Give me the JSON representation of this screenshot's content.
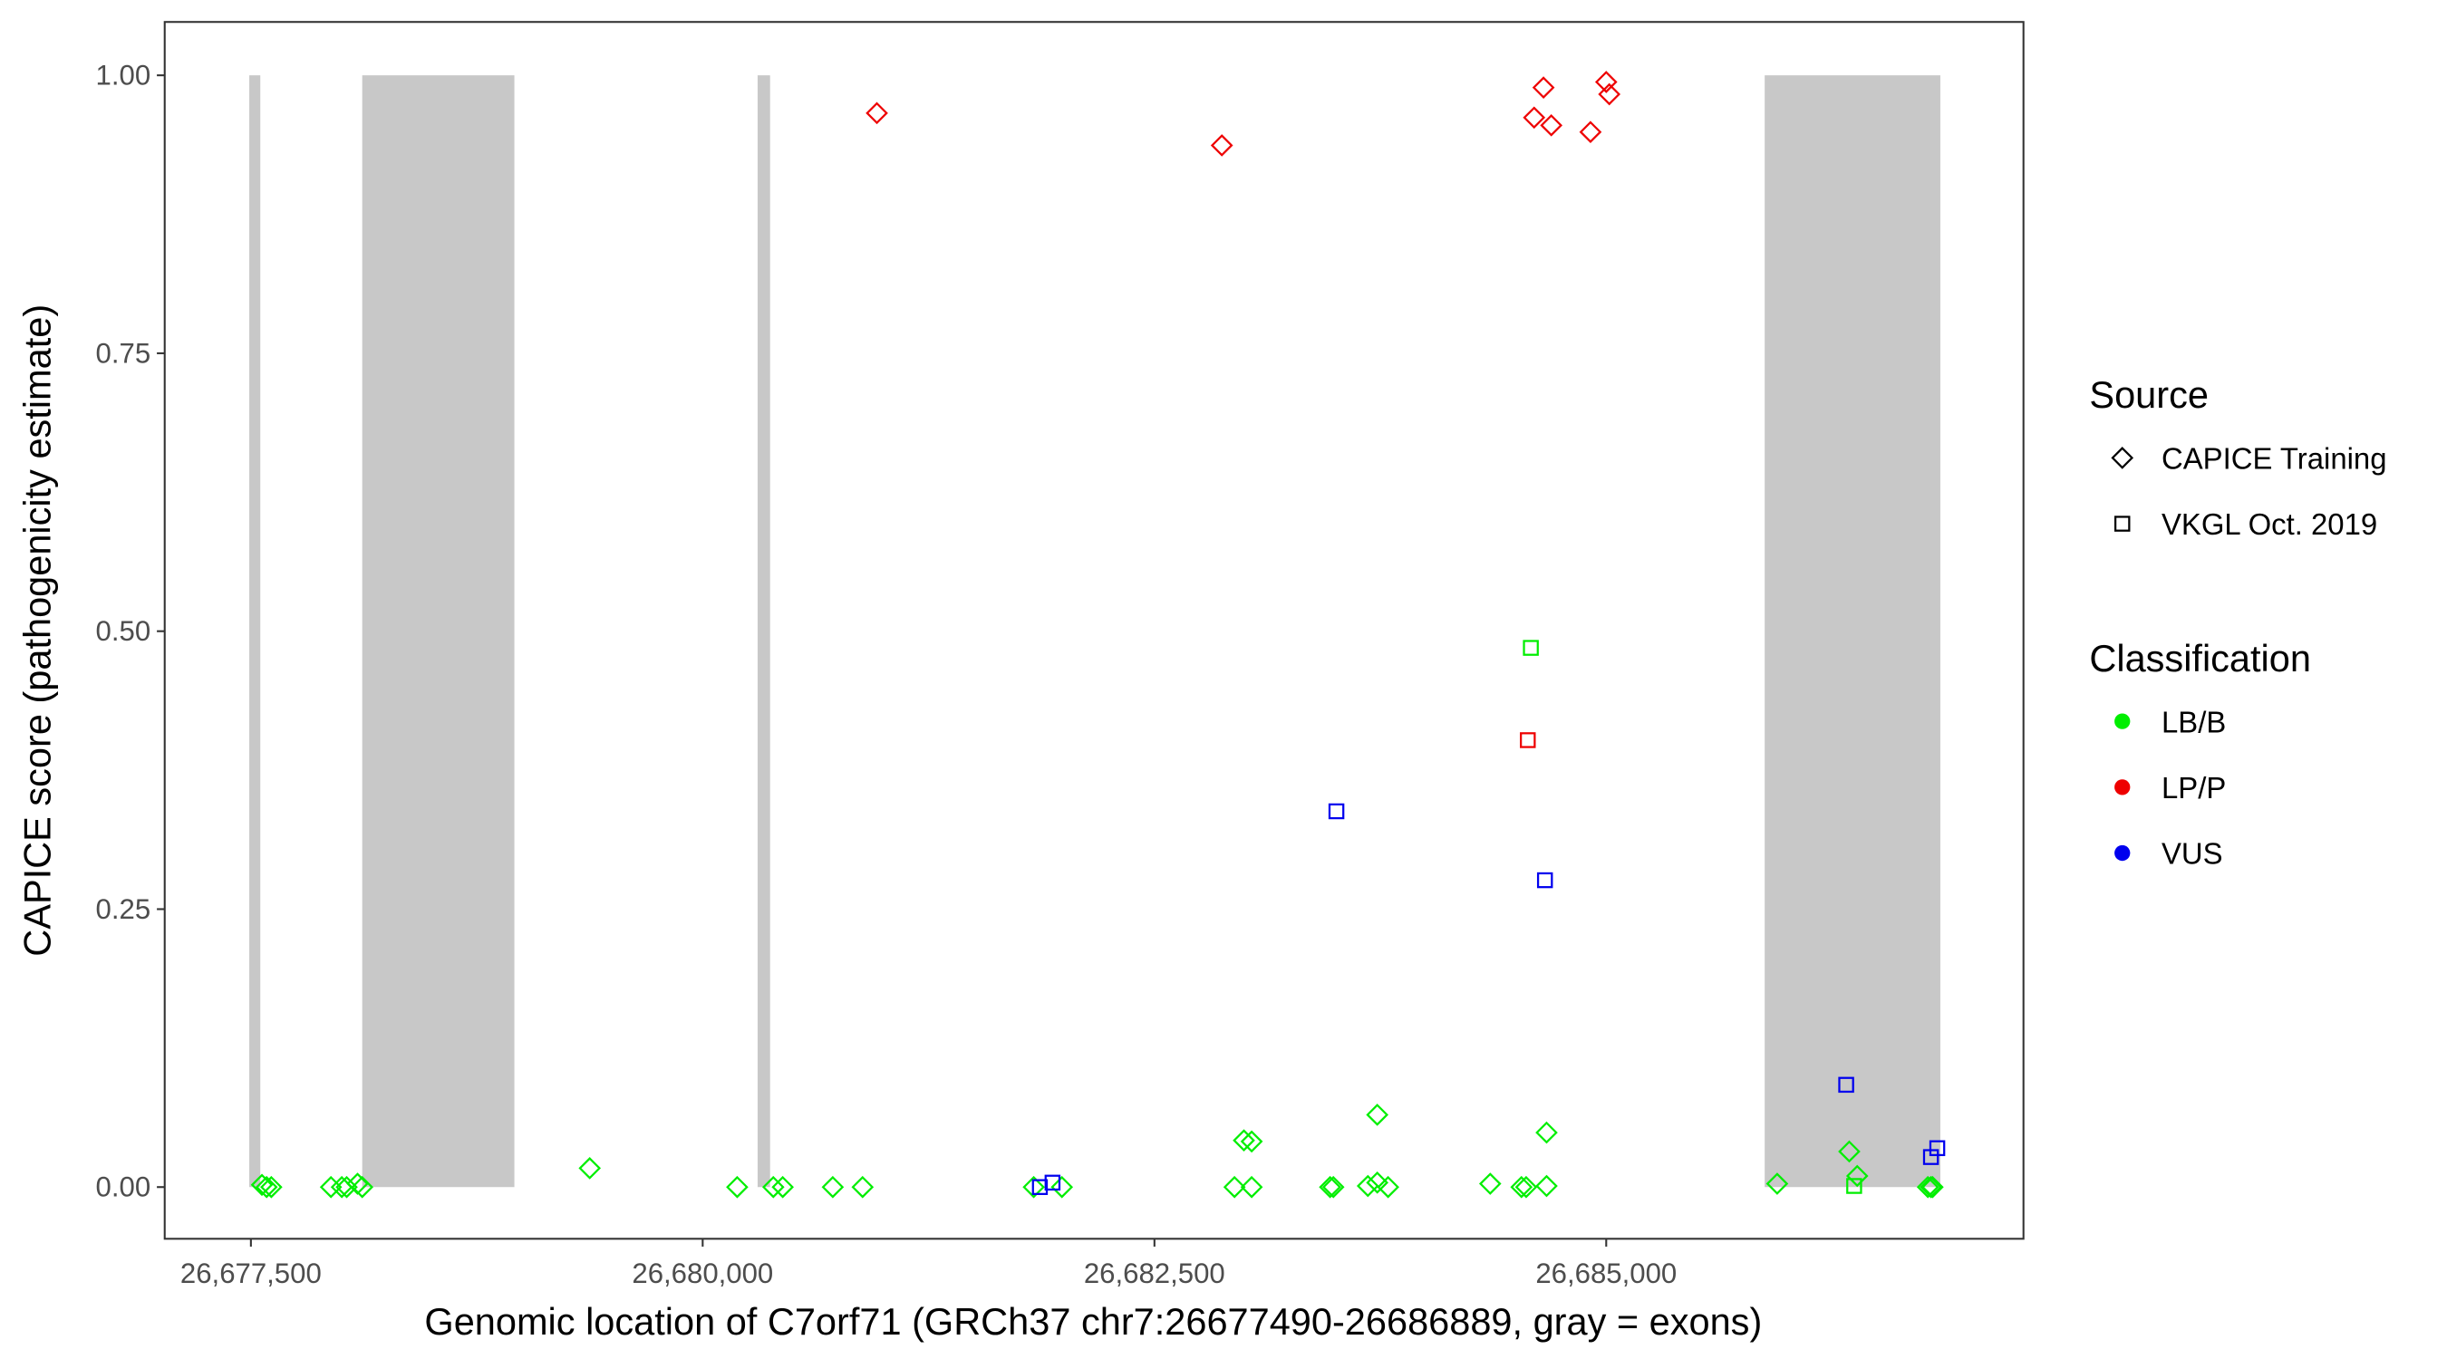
{
  "chart_data": {
    "type": "scatter",
    "title": "",
    "xlabel": "Genomic location of C7orf71 (GRCh37 chr7:26677490-26686889, gray = exons)",
    "ylabel": "CAPICE score (pathogenicity estimate)",
    "xlim": [
      26677023,
      26687309
    ],
    "ylim": [
      -0.0465,
      1.048
    ],
    "x_ticks": [
      26677500,
      26680000,
      26682500,
      26685000
    ],
    "x_tick_labels": [
      "26,677,500",
      "26,680,000",
      "26,682,500",
      "26,685,000"
    ],
    "y_ticks": [
      0,
      0.25,
      0.5,
      0.75,
      1.0
    ],
    "y_tick_labels": [
      "0.00",
      "0.25",
      "0.50",
      "0.75",
      "1.00"
    ],
    "grid": false,
    "exons": [
      [
        26677491,
        26677552
      ],
      [
        26678116,
        26678958
      ],
      [
        26680304,
        26680373
      ],
      [
        26685877,
        26686849
      ]
    ],
    "exon_y_range": [
      0,
      1
    ],
    "exon_color": "#c8c8c8",
    "legend_placement": "right",
    "legend": {
      "source_title": "Source",
      "source_items": [
        {
          "label": "CAPICE Training",
          "shape": "diamond"
        },
        {
          "label": "VKGL Oct. 2019",
          "shape": "square"
        }
      ],
      "class_title": "Classification",
      "class_items": [
        {
          "label": "LB/B",
          "color": "#00ee00"
        },
        {
          "label": "LP/P",
          "color": "#ee0000"
        },
        {
          "label": "VUS",
          "color": "#0000ee"
        }
      ]
    },
    "points": [
      {
        "x": 26677561,
        "y": 0.002,
        "src": "CAPICE Training",
        "cls": "LB/B"
      },
      {
        "x": 26677587,
        "y": 0.0,
        "src": "CAPICE Training",
        "cls": "LB/B"
      },
      {
        "x": 26677613,
        "y": 0.0,
        "src": "CAPICE Training",
        "cls": "LB/B"
      },
      {
        "x": 26677943,
        "y": 0.0,
        "src": "CAPICE Training",
        "cls": "LB/B"
      },
      {
        "x": 26678003,
        "y": 0.0,
        "src": "CAPICE Training",
        "cls": "LB/B"
      },
      {
        "x": 26678030,
        "y": 0.0,
        "src": "CAPICE Training",
        "cls": "LB/B"
      },
      {
        "x": 26678090,
        "y": 0.003,
        "src": "CAPICE Training",
        "cls": "LB/B"
      },
      {
        "x": 26678116,
        "y": 0.0,
        "src": "CAPICE Training",
        "cls": "LB/B"
      },
      {
        "x": 26679375,
        "y": 0.017,
        "src": "CAPICE Training",
        "cls": "LB/B"
      },
      {
        "x": 26680191,
        "y": 0.0,
        "src": "CAPICE Training",
        "cls": "LB/B"
      },
      {
        "x": 26680391,
        "y": 0.0,
        "src": "CAPICE Training",
        "cls": "LB/B"
      },
      {
        "x": 26680443,
        "y": 0.0,
        "src": "CAPICE Training",
        "cls": "LB/B"
      },
      {
        "x": 26680720,
        "y": 0.0,
        "src": "CAPICE Training",
        "cls": "LB/B"
      },
      {
        "x": 26680885,
        "y": 0.0,
        "src": "CAPICE Training",
        "cls": "LB/B"
      },
      {
        "x": 26681832,
        "y": 0.0,
        "src": "CAPICE Training",
        "cls": "LB/B"
      },
      {
        "x": 26681988,
        "y": 0.0,
        "src": "CAPICE Training",
        "cls": "LB/B"
      },
      {
        "x": 26681866,
        "y": 0.0,
        "src": "VKGL Oct. 2019",
        "cls": "VUS"
      },
      {
        "x": 26681936,
        "y": 0.004,
        "src": "VKGL Oct. 2019",
        "cls": "VUS"
      },
      {
        "x": 26682943,
        "y": 0.0,
        "src": "CAPICE Training",
        "cls": "LB/B"
      },
      {
        "x": 26683038,
        "y": 0.0,
        "src": "CAPICE Training",
        "cls": "LB/B"
      },
      {
        "x": 26682995,
        "y": 0.042,
        "src": "CAPICE Training",
        "cls": "LB/B"
      },
      {
        "x": 26683038,
        "y": 0.041,
        "src": "CAPICE Training",
        "cls": "LB/B"
      },
      {
        "x": 26683472,
        "y": 0.0,
        "src": "CAPICE Training",
        "cls": "LB/B"
      },
      {
        "x": 26683490,
        "y": 0.0,
        "src": "CAPICE Training",
        "cls": "LB/B"
      },
      {
        "x": 26683681,
        "y": 0.001,
        "src": "CAPICE Training",
        "cls": "LB/B"
      },
      {
        "x": 26683733,
        "y": 0.004,
        "src": "CAPICE Training",
        "cls": "LB/B"
      },
      {
        "x": 26683793,
        "y": 0.0,
        "src": "CAPICE Training",
        "cls": "LB/B"
      },
      {
        "x": 26683733,
        "y": 0.065,
        "src": "CAPICE Training",
        "cls": "LB/B"
      },
      {
        "x": 26684358,
        "y": 0.003,
        "src": "CAPICE Training",
        "cls": "LB/B"
      },
      {
        "x": 26684531,
        "y": 0.0,
        "src": "CAPICE Training",
        "cls": "LB/B"
      },
      {
        "x": 26684557,
        "y": 0.0,
        "src": "CAPICE Training",
        "cls": "LB/B"
      },
      {
        "x": 26684670,
        "y": 0.001,
        "src": "CAPICE Training",
        "cls": "LB/B"
      },
      {
        "x": 26684670,
        "y": 0.049,
        "src": "CAPICE Training",
        "cls": "LB/B"
      },
      {
        "x": 26685946,
        "y": 0.003,
        "src": "CAPICE Training",
        "cls": "LB/B"
      },
      {
        "x": 26686345,
        "y": 0.032,
        "src": "CAPICE Training",
        "cls": "LB/B"
      },
      {
        "x": 26686389,
        "y": 0.01,
        "src": "CAPICE Training",
        "cls": "LB/B"
      },
      {
        "x": 26686372,
        "y": 0.001,
        "src": "VKGL Oct. 2019",
        "cls": "LB/B"
      },
      {
        "x": 26686780,
        "y": 0.0,
        "src": "CAPICE Training",
        "cls": "LB/B"
      },
      {
        "x": 26686797,
        "y": 0.0,
        "src": "CAPICE Training",
        "cls": "LB/B"
      },
      {
        "x": 26686806,
        "y": 0.0,
        "src": "CAPICE Training",
        "cls": "LB/B"
      },
      {
        "x": 26686328,
        "y": 0.092,
        "src": "VKGL Oct. 2019",
        "cls": "VUS"
      },
      {
        "x": 26686797,
        "y": 0.027,
        "src": "VKGL Oct. 2019",
        "cls": "VUS"
      },
      {
        "x": 26686832,
        "y": 0.035,
        "src": "VKGL Oct. 2019",
        "cls": "VUS"
      },
      {
        "x": 26683507,
        "y": 0.338,
        "src": "VKGL Oct. 2019",
        "cls": "VUS"
      },
      {
        "x": 26684661,
        "y": 0.276,
        "src": "VKGL Oct. 2019",
        "cls": "VUS"
      },
      {
        "x": 26684583,
        "y": 0.485,
        "src": "VKGL Oct. 2019",
        "cls": "LB/B"
      },
      {
        "x": 26684566,
        "y": 0.402,
        "src": "VKGL Oct. 2019",
        "cls": "LP/P"
      },
      {
        "x": 26680964,
        "y": 0.966,
        "src": "CAPICE Training",
        "cls": "LP/P"
      },
      {
        "x": 26682873,
        "y": 0.937,
        "src": "CAPICE Training",
        "cls": "LP/P"
      },
      {
        "x": 26684601,
        "y": 0.962,
        "src": "CAPICE Training",
        "cls": "LP/P"
      },
      {
        "x": 26684653,
        "y": 0.989,
        "src": "CAPICE Training",
        "cls": "LP/P"
      },
      {
        "x": 26684696,
        "y": 0.955,
        "src": "CAPICE Training",
        "cls": "LP/P"
      },
      {
        "x": 26684913,
        "y": 0.949,
        "src": "CAPICE Training",
        "cls": "LP/P"
      },
      {
        "x": 26685000,
        "y": 0.994,
        "src": "CAPICE Training",
        "cls": "LP/P"
      },
      {
        "x": 26685017,
        "y": 0.983,
        "src": "CAPICE Training",
        "cls": "LP/P"
      }
    ]
  }
}
